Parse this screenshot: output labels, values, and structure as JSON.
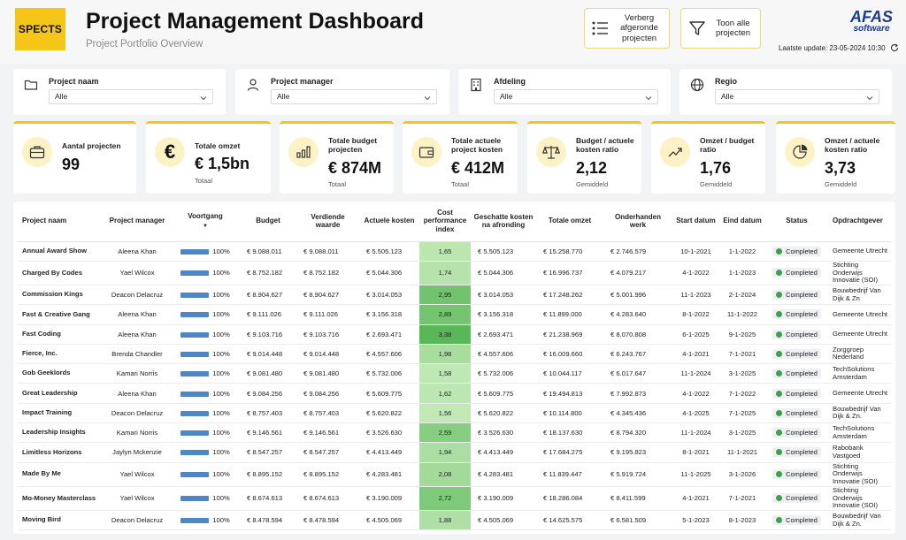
{
  "header": {
    "logo": "SPECTS",
    "title": "Project Management Dashboard",
    "subtitle": "Project Portfolio Overview",
    "btn_hide_label": "Verberg afgeronde projecten",
    "btn_show_label": "Toon alle projecten",
    "brand_main": "AFAS",
    "brand_sub": "software",
    "update_label": "Laatste update: 23-05-2024 10:30"
  },
  "filters": [
    {
      "label": "Project naam",
      "value": "Alle",
      "icon": "folder-icon"
    },
    {
      "label": "Project manager",
      "value": "Alle",
      "icon": "user-icon"
    },
    {
      "label": "Afdeling",
      "value": "Alle",
      "icon": "building-icon"
    },
    {
      "label": "Regio",
      "value": "Alle",
      "icon": "globe-icon"
    }
  ],
  "kpis": [
    {
      "title": "Aantal projecten",
      "value": "99",
      "sub": "",
      "icon": "briefcase-icon"
    },
    {
      "title": "Totale omzet",
      "value": "€ 1,5bn",
      "sub": "Totaal",
      "icon": "euro-icon"
    },
    {
      "title": "Totale budget projecten",
      "value": "€ 874M",
      "sub": "Totaal",
      "icon": "bar-chart-icon"
    },
    {
      "title": "Totale actuele project kosten",
      "value": "€ 412M",
      "sub": "Totaal",
      "icon": "wallet-icon"
    },
    {
      "title": "Budget / actuele kosten ratio",
      "value": "2,12",
      "sub": "Gemiddeld",
      "icon": "scale-icon"
    },
    {
      "title": "Omzet / budget ratio",
      "value": "1,76",
      "sub": "Gemiddeld",
      "icon": "trend-up-icon"
    },
    {
      "title": "Omzet / actuele kosten ratio",
      "value": "3,73",
      "sub": "Gemiddeld",
      "icon": "pie-chart-icon"
    }
  ],
  "table": {
    "columns": [
      "Project naam",
      "Project manager",
      "Voortgang",
      "Budget",
      "Verdiende waarde",
      "Actuele kosten",
      "Cost performance index",
      "Geschatte kosten na afronding",
      "Totale omzet",
      "Onderhanden werk",
      "Start datum",
      "Eind datum",
      "Status",
      "Opdrachtgever"
    ],
    "rows": [
      {
        "name": "Annual Award Show",
        "manager": "Aleena Khan",
        "progress": "100%",
        "budget": "€ 9.088.011",
        "earned": "€ 9.088.011",
        "actual": "€ 5.505.123",
        "cpi": "1,65",
        "eac": "€ 5.505.123",
        "revenue": "€ 15.258.770",
        "wip": "€ 2.746.579",
        "start": "10-1-2021",
        "end": "1-1-2022",
        "status": "Completed",
        "client": "Gemeente Utrecht"
      },
      {
        "name": "Charged By Codes",
        "manager": "Yael Wilcox",
        "progress": "100%",
        "budget": "€ 8.752.182",
        "earned": "€ 8.752.182",
        "actual": "€ 5.044.306",
        "cpi": "1,74",
        "eac": "€ 5.044.306",
        "revenue": "€ 16.996.737",
        "wip": "€ 4.079.217",
        "start": "4-1-2022",
        "end": "1-1-2023",
        "status": "Completed",
        "client": "Stichting Onderwijs Innovatie (SOI)"
      },
      {
        "name": "Commission Kings",
        "manager": "Deacon Delacruz",
        "progress": "100%",
        "budget": "€ 8.904.627",
        "earned": "€ 8.904.627",
        "actual": "€ 3.014.053",
        "cpi": "2,95",
        "eac": "€ 3.014.053",
        "revenue": "€ 17.248.262",
        "wip": "€ 5.001.996",
        "start": "11-1-2023",
        "end": "2-1-2024",
        "status": "Completed",
        "client": "Bouwbedrijf Van Dijk & Zn"
      },
      {
        "name": "Fast & Creative Gang",
        "manager": "Aleena Khan",
        "progress": "100%",
        "budget": "€ 9.111.026",
        "earned": "€ 9.111.026",
        "actual": "€ 3.156.318",
        "cpi": "2,89",
        "eac": "€ 3.156.318",
        "revenue": "€ 11.899.000",
        "wip": "€ 4.283.640",
        "start": "8-1-2022",
        "end": "11-1-2022",
        "status": "Completed",
        "client": "Gemeente Utrecht"
      },
      {
        "name": "Fast Coding",
        "manager": "Aleena Khan",
        "progress": "100%",
        "budget": "€ 9.103.716",
        "earned": "€ 9.103.716",
        "actual": "€ 2.693.471",
        "cpi": "3,38",
        "eac": "€ 2.693.471",
        "revenue": "€ 21.238.969",
        "wip": "€ 8.070.808",
        "start": "6-1-2025",
        "end": "9-1-2025",
        "status": "Completed",
        "client": "Gemeente Utrecht"
      },
      {
        "name": "Fierce, Inc.",
        "manager": "Brenda Chandler",
        "progress": "100%",
        "budget": "€ 9.014.448",
        "earned": "€ 9.014.448",
        "actual": "€ 4.557.606",
        "cpi": "1,98",
        "eac": "€ 4.557.606",
        "revenue": "€ 16.009.660",
        "wip": "€ 6.243.767",
        "start": "4-1-2021",
        "end": "7-1-2021",
        "status": "Completed",
        "client": "Zorggroep Nederland"
      },
      {
        "name": "Gob Geeklords",
        "manager": "Kamari Norris",
        "progress": "100%",
        "budget": "€ 9.081.480",
        "earned": "€ 9.081.480",
        "actual": "€ 5.732.006",
        "cpi": "1,58",
        "eac": "€ 5.732.006",
        "revenue": "€ 10.044.117",
        "wip": "€ 6.017.647",
        "start": "11-1-2024",
        "end": "3-1-2025",
        "status": "Completed",
        "client": "TechSolutions Amsterdam"
      },
      {
        "name": "Great Leadership",
        "manager": "Aleena Khan",
        "progress": "100%",
        "budget": "€ 9.084.256",
        "earned": "€ 9.084.256",
        "actual": "€ 5.609.775",
        "cpi": "1,62",
        "eac": "€ 5.609.775",
        "revenue": "€ 19.494.813",
        "wip": "€ 7.992.873",
        "start": "4-1-2022",
        "end": "7-1-2022",
        "status": "Completed",
        "client": "Gemeente Utrecht"
      },
      {
        "name": "Impact Training",
        "manager": "Deacon Delacruz",
        "progress": "100%",
        "budget": "€ 8.757.403",
        "earned": "€ 8.757.403",
        "actual": "€ 5.620.822",
        "cpi": "1,56",
        "eac": "€ 5.620.822",
        "revenue": "€ 10.114.800",
        "wip": "€ 4.345.436",
        "start": "4-1-2025",
        "end": "7-1-2025",
        "status": "Completed",
        "client": "Bouwbedrijf Van Dijk & Zn."
      },
      {
        "name": "Leadership Insights",
        "manager": "Kamari Norris",
        "progress": "100%",
        "budget": "€ 9.146.561",
        "earned": "€ 9.146.561",
        "actual": "€ 3.526.630",
        "cpi": "2,59",
        "eac": "€ 3.526.630",
        "revenue": "€ 18.137.630",
        "wip": "€ 8.794.320",
        "start": "11-1-2024",
        "end": "3-1-2025",
        "status": "Completed",
        "client": "TechSolutions Amsterdam"
      },
      {
        "name": "Limitless Horizons",
        "manager": "Jaylyn Mckenzie",
        "progress": "100%",
        "budget": "€ 8.547.257",
        "earned": "€ 8.547.257",
        "actual": "€ 4.413.449",
        "cpi": "1,94",
        "eac": "€ 4.413.449",
        "revenue": "€ 17.684.275",
        "wip": "€ 9.195.823",
        "start": "8-1-2021",
        "end": "11-1-2021",
        "status": "Completed",
        "client": "Rabobank Vastgoed"
      },
      {
        "name": "Made By Me",
        "manager": "Yael Wilcox",
        "progress": "100%",
        "budget": "€ 8.895.152",
        "earned": "€ 8.895.152",
        "actual": "€ 4.283.481",
        "cpi": "2,08",
        "eac": "€ 4.283.481",
        "revenue": "€ 11.839.447",
        "wip": "€ 5.919.724",
        "start": "11-1-2025",
        "end": "3-1-2026",
        "status": "Completed",
        "client": "Stichting Onderwijs Innovatie (SOI)"
      },
      {
        "name": "Mo-Money Masterclass",
        "manager": "Yael Wilcox",
        "progress": "100%",
        "budget": "€ 8.674.613",
        "earned": "€ 8.674.613",
        "actual": "€ 3.190.009",
        "cpi": "2,72",
        "eac": "€ 3.190.009",
        "revenue": "€ 18.286.084",
        "wip": "€ 8.411.599",
        "start": "4-1-2021",
        "end": "7-1-2021",
        "status": "Completed",
        "client": "Stichting Onderwijs Innovatie (SOI)"
      },
      {
        "name": "Moving Bird",
        "manager": "Deacon Delacruz",
        "progress": "100%",
        "budget": "€ 8.478.594",
        "earned": "€ 8.478.594",
        "actual": "€ 4.505.069",
        "cpi": "1,88",
        "eac": "€ 4.505.069",
        "revenue": "€ 14.625.575",
        "wip": "€ 6.581.509",
        "start": "5-1-2023",
        "end": "8-1-2023",
        "status": "Completed",
        "client": "Bouwbedrijf Van Dijk & Zn."
      }
    ]
  },
  "colors": {
    "accent": "#f5c518",
    "progress_bar": "#4f86c6",
    "status_dot": "#3aa24a",
    "brand": "#1a3c8f"
  }
}
